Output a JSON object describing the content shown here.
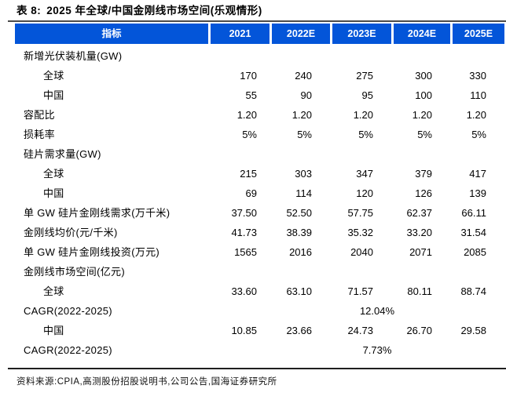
{
  "title": {
    "prefix": "表 8:",
    "text": "2025 年全球/中国金刚线市场空间(乐观情形)"
  },
  "table": {
    "columns": [
      "指标",
      "2021",
      "2022E",
      "2023E",
      "2024E",
      "2025E"
    ],
    "rows": [
      {
        "label": "新增光伏装机量(GW)",
        "indent": 0,
        "values": []
      },
      {
        "label": "全球",
        "indent": 1,
        "values": [
          "170",
          "240",
          "275",
          "300",
          "330"
        ]
      },
      {
        "label": "中国",
        "indent": 1,
        "values": [
          "55",
          "90",
          "95",
          "100",
          "110"
        ]
      },
      {
        "label": "容配比",
        "indent": 0,
        "values": [
          "1.20",
          "1.20",
          "1.20",
          "1.20",
          "1.20"
        ]
      },
      {
        "label": "损耗率",
        "indent": 0,
        "values": [
          "5%",
          "5%",
          "5%",
          "5%",
          "5%"
        ]
      },
      {
        "label": "硅片需求量(GW)",
        "indent": 0,
        "values": []
      },
      {
        "label": "全球",
        "indent": 1,
        "values": [
          "215",
          "303",
          "347",
          "379",
          "417"
        ]
      },
      {
        "label": "中国",
        "indent": 1,
        "values": [
          "69",
          "114",
          "120",
          "126",
          "139"
        ]
      },
      {
        "label": "单 GW 硅片金刚线需求(万千米)",
        "indent": 0,
        "values": [
          "37.50",
          "52.50",
          "57.75",
          "62.37",
          "66.11"
        ]
      },
      {
        "label": "金刚线均价(元/千米)",
        "indent": 0,
        "values": [
          "41.73",
          "38.39",
          "35.32",
          "33.20",
          "31.54"
        ]
      },
      {
        "label": "单 GW 硅片金刚线投资(万元)",
        "indent": 0,
        "values": [
          "1565",
          "2016",
          "2040",
          "2071",
          "2085"
        ]
      },
      {
        "label": "金刚线市场空间(亿元)",
        "indent": 0,
        "values": []
      },
      {
        "label": "全球",
        "indent": 1,
        "values": [
          "33.60",
          "63.10",
          "71.57",
          "80.11",
          "88.74"
        ]
      },
      {
        "label": "CAGR(2022-2025)",
        "indent": 0,
        "merged_value": "12.04%"
      },
      {
        "label": "中国",
        "indent": 1,
        "values": [
          "10.85",
          "23.66",
          "24.73",
          "26.70",
          "29.58"
        ]
      },
      {
        "label": "CAGR(2022-2025)",
        "indent": 0,
        "merged_value": "7.73%"
      }
    ]
  },
  "footer": {
    "text": "资料来源:CPIA,高测股份招股说明书,公司公告,国海证券研究所"
  },
  "colors": {
    "header_bg": "#0355D9",
    "header_text": "#FFFFFF",
    "rule_top": "#4A4A4A",
    "rule_bottom": "#1F1F1F"
  }
}
